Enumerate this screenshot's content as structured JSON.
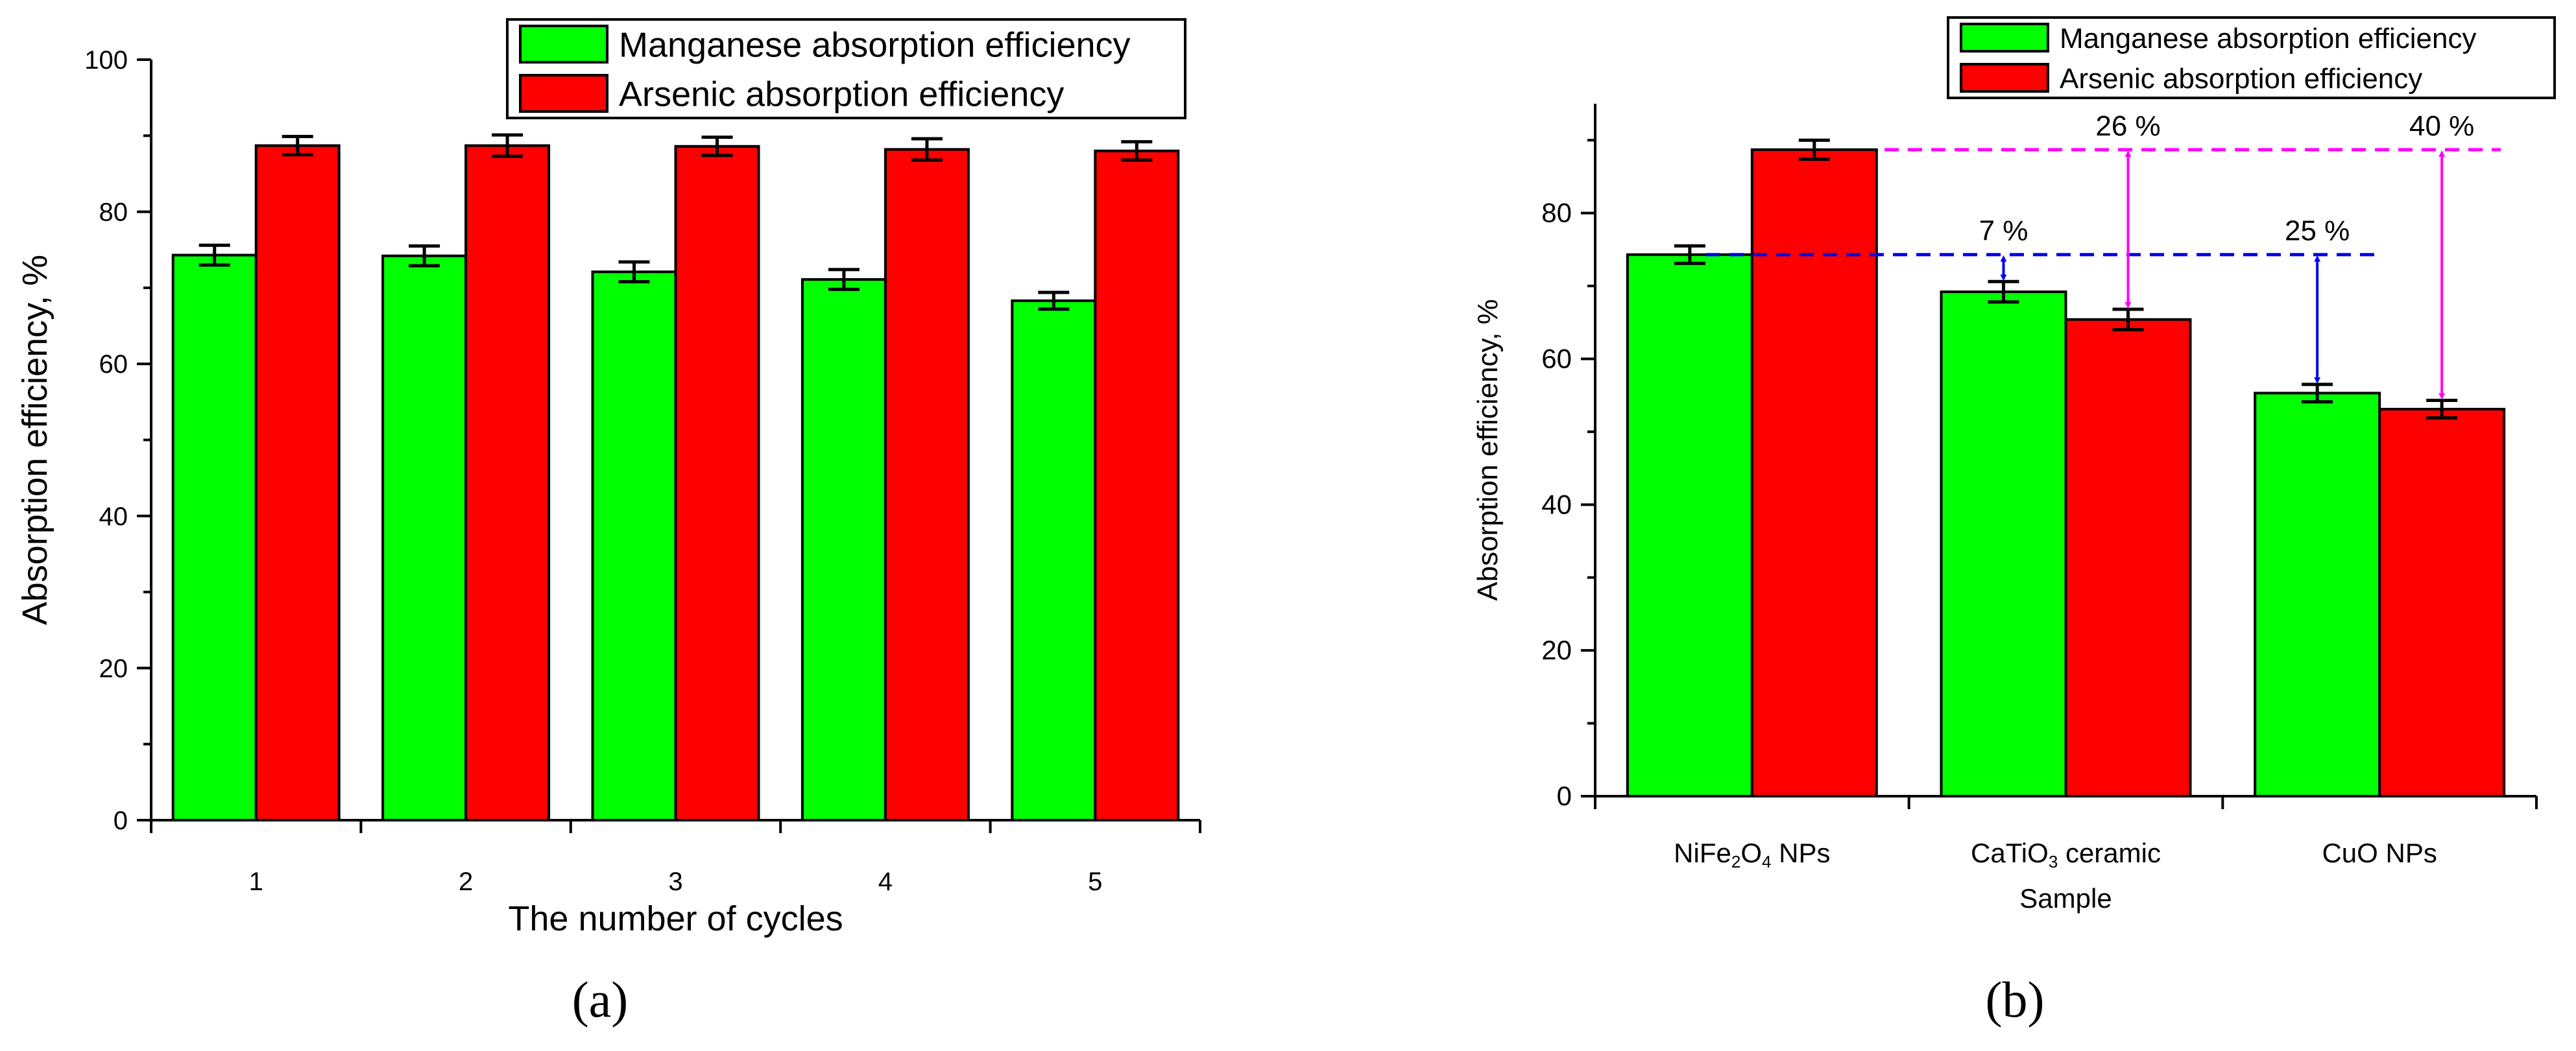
{
  "figure": {
    "panel_a_label": "(a)",
    "panel_b_label": "(b)"
  },
  "colors": {
    "manganese": "#00ff00",
    "arsenic": "#ff0000",
    "blue_guide": "#0000ee",
    "magenta_guide": "#ff00ff"
  },
  "chart_data": [
    {
      "type": "bar",
      "panel": "a",
      "title": "",
      "xlabel": "The number of cycles",
      "ylabel": "Absorption efficiency, %",
      "categories": [
        "1",
        "2",
        "3",
        "4",
        "5"
      ],
      "ylim": [
        0,
        100
      ],
      "yticks": [
        0,
        20,
        40,
        60,
        80,
        100
      ],
      "legend_position": "top-right",
      "series": [
        {
          "name": "Manganese absorption efficiency",
          "color": "#00ff00",
          "values": [
            74.3,
            74.2,
            72.1,
            71.1,
            68.3
          ],
          "errors": [
            1.3,
            1.3,
            1.3,
            1.3,
            1.1
          ]
        },
        {
          "name": "Arsenic absorption efficiency",
          "color": "#ff0000",
          "values": [
            88.7,
            88.7,
            88.6,
            88.2,
            88.0
          ],
          "errors": [
            1.2,
            1.4,
            1.2,
            1.4,
            1.2
          ]
        }
      ]
    },
    {
      "type": "bar",
      "panel": "b",
      "title": "",
      "xlabel": "",
      "ylabel": "Absorption efficiency, %",
      "categories": [
        {
          "parts": [
            [
              "NiFe",
              "n"
            ],
            [
              "2",
              "s"
            ],
            [
              "O",
              "n"
            ],
            [
              "4",
              "s"
            ],
            [
              " NPs",
              "n"
            ]
          ]
        },
        {
          "parts": [
            [
              "CaTiO",
              "n"
            ],
            [
              "3",
              "s"
            ],
            [
              " ceramic",
              "n"
            ]
          ],
          "line2": "Sample"
        },
        {
          "parts": [
            [
              "CuO NPs",
              "n"
            ]
          ]
        }
      ],
      "ylim": [
        0,
        95
      ],
      "yticks": [
        0,
        20,
        40,
        60,
        80
      ],
      "legend_position": "top-right",
      "series": [
        {
          "name": "Manganese absorption efficiency",
          "color": "#00ff00",
          "values": [
            74.3,
            69.2,
            55.3
          ],
          "errors": [
            1.2,
            1.4,
            1.2
          ]
        },
        {
          "name": "Arsenic absorption efficiency",
          "color": "#ff0000",
          "values": [
            88.7,
            65.4,
            53.1
          ],
          "errors": [
            1.3,
            1.4,
            1.2
          ]
        }
      ],
      "reference_lines": [
        {
          "value": 74.3,
          "color": "#0000ee"
        },
        {
          "value": 88.7,
          "color": "#ff00ff"
        }
      ],
      "annotations": [
        {
          "text": "7 %",
          "category": 1,
          "series": 0,
          "color": "#0000ee"
        },
        {
          "text": "26 %",
          "category": 1,
          "series": 1,
          "color": "#ff00ff"
        },
        {
          "text": "25 %",
          "category": 2,
          "series": 0,
          "color": "#0000ee"
        },
        {
          "text": "40 %",
          "category": 2,
          "series": 1,
          "color": "#ff00ff"
        }
      ]
    }
  ]
}
